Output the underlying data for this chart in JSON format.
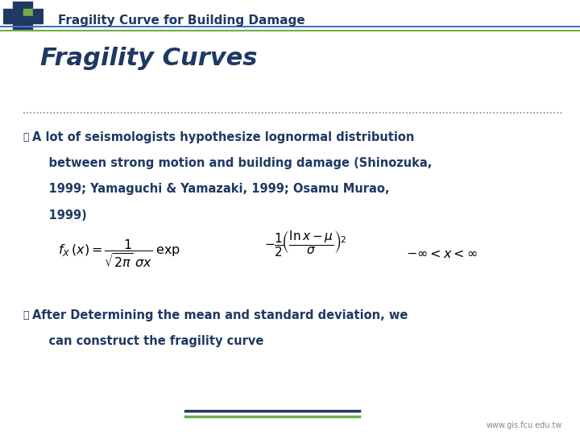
{
  "title": "Fragility Curve for Building Damage",
  "title_color": "#1F3864",
  "slide_title": "Fragility Curves",
  "slide_title_color": "#1F3864",
  "header_line_color": "#4472C4",
  "header_green_line_color": "#70AD47",
  "separator_color": "#888888",
  "background_color": "#FFFFFF",
  "bullet1_text_lines": [
    "A lot of seismologists hypothesize lognormal distribution",
    "    between strong motion and building damage (Shinozuka,",
    "    1999; Yamaguchi & Yamazaki, 1999; Osamu Murao,",
    "    1999)"
  ],
  "bullet2_text_lines": [
    "After Determining the mean and standard deviation, we",
    "    can construct the fragility curve"
  ],
  "footer_text": "www.gis.fcu.edu.tw",
  "bullet_color": "#1F3864",
  "text_color": "#1F3864",
  "formula_color": "#000000"
}
